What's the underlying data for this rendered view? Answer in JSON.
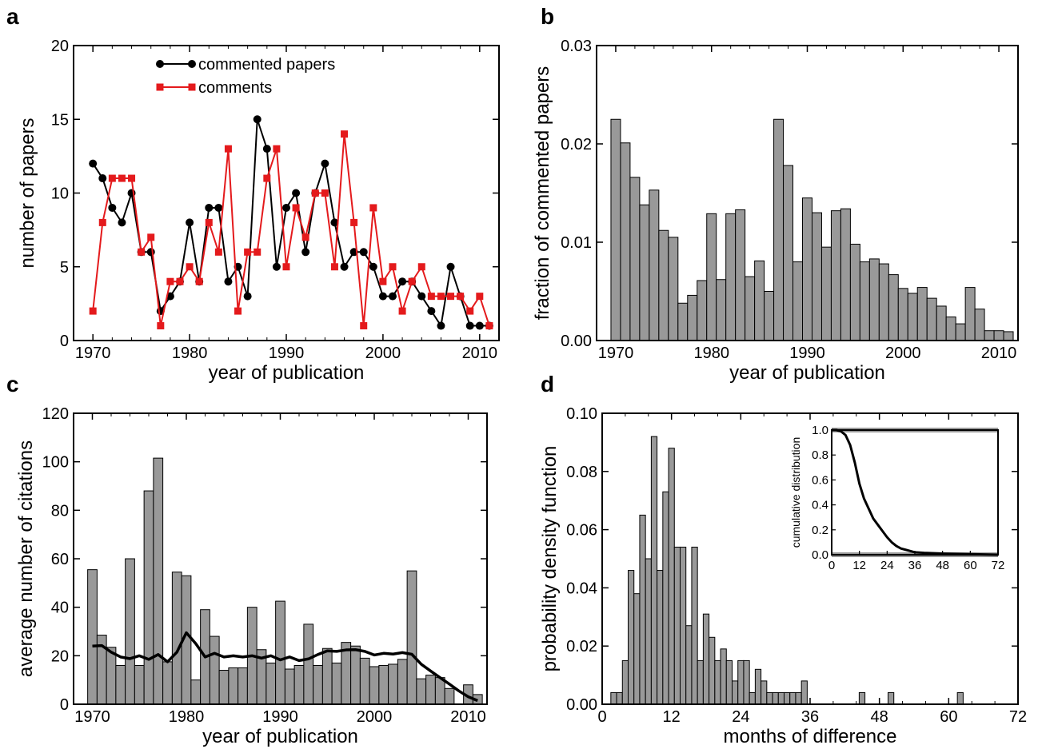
{
  "chart_data": [
    {
      "panel": "a",
      "type": "line",
      "xlabel": "year of publication",
      "ylabel": "number of papers",
      "xlim": [
        1968,
        2012
      ],
      "ylim": [
        0,
        20
      ],
      "xticks": [
        1970,
        1980,
        1990,
        2000,
        2010
      ],
      "yticks": [
        0,
        5,
        10,
        15,
        20
      ],
      "legend_position": "top-center",
      "x": [
        1970,
        1971,
        1972,
        1973,
        1974,
        1975,
        1976,
        1977,
        1978,
        1979,
        1980,
        1981,
        1982,
        1983,
        1984,
        1985,
        1986,
        1987,
        1988,
        1989,
        1990,
        1991,
        1992,
        1993,
        1994,
        1995,
        1996,
        1997,
        1998,
        1999,
        2000,
        2001,
        2002,
        2003,
        2004,
        2005,
        2006,
        2007,
        2008,
        2009,
        2010,
        2011
      ],
      "series": [
        {
          "name": "commented papers",
          "color": "#000000",
          "marker": "circle",
          "values": [
            12,
            11,
            9,
            8,
            10,
            6,
            6,
            2,
            3,
            4,
            8,
            4,
            9,
            9,
            4,
            5,
            3,
            15,
            13,
            5,
            9,
            10,
            6,
            10,
            12,
            8,
            5,
            6,
            6,
            5,
            3,
            3,
            4,
            4,
            3,
            2,
            1,
            5,
            3,
            1,
            1,
            1
          ]
        },
        {
          "name": "comments",
          "color": "#e41a1c",
          "marker": "square",
          "values": [
            2,
            8,
            11,
            11,
            11,
            6,
            7,
            1,
            4,
            4,
            5,
            4,
            8,
            6,
            13,
            2,
            6,
            6,
            11,
            13,
            5,
            9,
            7,
            10,
            10,
            5,
            14,
            8,
            1,
            9,
            4,
            5,
            2,
            4,
            5,
            3,
            3,
            3,
            3,
            2,
            3,
            1
          ]
        }
      ]
    },
    {
      "panel": "b",
      "type": "bar",
      "xlabel": "year of publication",
      "ylabel": "fraction of commented papers",
      "xlim": [
        1968,
        2012
      ],
      "ylim": [
        0,
        0.03
      ],
      "xticks": [
        1970,
        1980,
        1990,
        2000,
        2010
      ],
      "yticks": [
        "0.00",
        "0.01",
        "0.02",
        "0.03"
      ],
      "bar_color": "#999999",
      "categories": [
        1970,
        1971,
        1972,
        1973,
        1974,
        1975,
        1976,
        1977,
        1978,
        1979,
        1980,
        1981,
        1982,
        1983,
        1984,
        1985,
        1986,
        1987,
        1988,
        1989,
        1990,
        1991,
        1992,
        1993,
        1994,
        1995,
        1996,
        1997,
        1998,
        1999,
        2000,
        2001,
        2002,
        2003,
        2004,
        2005,
        2006,
        2007,
        2008,
        2009,
        2010,
        2011
      ],
      "values": [
        0.0225,
        0.0201,
        0.0166,
        0.0138,
        0.0153,
        0.0112,
        0.0105,
        0.0038,
        0.0046,
        0.0061,
        0.0129,
        0.0062,
        0.0129,
        0.0133,
        0.0065,
        0.0081,
        0.005,
        0.0225,
        0.0178,
        0.008,
        0.0145,
        0.013,
        0.0095,
        0.0132,
        0.0134,
        0.0098,
        0.008,
        0.0083,
        0.0078,
        0.0067,
        0.0053,
        0.0048,
        0.0054,
        0.0043,
        0.0035,
        0.0024,
        0.0017,
        0.0054,
        0.0032,
        0.001,
        0.001,
        0.0009
      ]
    },
    {
      "panel": "c",
      "type": "bar",
      "xlabel": "year of publication",
      "ylabel": "average number of citations",
      "xlim": [
        1968,
        2012
      ],
      "ylim": [
        0,
        120
      ],
      "xticks": [
        1970,
        1980,
        1990,
        2000,
        2010
      ],
      "yticks": [
        0,
        20,
        40,
        60,
        80,
        100,
        120
      ],
      "bar_color": "#999999",
      "line_color": "#000000",
      "categories": [
        1970,
        1971,
        1972,
        1973,
        1974,
        1975,
        1976,
        1977,
        1978,
        1979,
        1980,
        1981,
        1982,
        1983,
        1984,
        1985,
        1986,
        1987,
        1988,
        1989,
        1990,
        1991,
        1992,
        1993,
        1994,
        1995,
        1996,
        1997,
        1998,
        1999,
        2000,
        2001,
        2002,
        2003,
        2004,
        2005,
        2006,
        2007,
        2008,
        2009,
        2010,
        2011
      ],
      "values": [
        55.5,
        28.5,
        23.5,
        16,
        60,
        16,
        88,
        101.5,
        17.5,
        54.5,
        53,
        10,
        39,
        28,
        14,
        15,
        15,
        40,
        22.5,
        17,
        42.5,
        14.5,
        16,
        33,
        16,
        23,
        17,
        25.5,
        24,
        19,
        15.5,
        16,
        16.5,
        18.5,
        55,
        10.5,
        12,
        11,
        6.5,
        0,
        8,
        4
      ],
      "line_values": [
        24,
        24.2,
        21.5,
        19.5,
        18.8,
        20,
        18.5,
        20.5,
        17.5,
        21.5,
        29.5,
        25,
        19.5,
        21,
        19.5,
        20,
        19.5,
        20,
        19,
        20,
        18.3,
        19.5,
        18,
        18.7,
        20.5,
        22,
        21.8,
        22.4,
        22.5,
        21.8,
        20.3,
        21,
        20.7,
        21.3,
        20.6,
        16.5,
        13.7,
        11,
        8.3,
        5.5,
        3.1,
        1.5
      ]
    },
    {
      "panel": "d",
      "type": "bar",
      "xlabel": "months of difference",
      "ylabel": "probability density function",
      "xlim": [
        0,
        72
      ],
      "ylim": [
        0,
        0.1
      ],
      "xticks": [
        0,
        12,
        24,
        36,
        48,
        60,
        72
      ],
      "yticks": [
        "0.00",
        "0.02",
        "0.04",
        "0.06",
        "0.08",
        "0.10"
      ],
      "bar_color": "#999999",
      "categories": [
        2,
        3,
        4,
        5,
        6,
        7,
        8,
        9,
        10,
        11,
        12,
        13,
        14,
        15,
        16,
        17,
        18,
        19,
        20,
        21,
        22,
        23,
        24,
        25,
        26,
        27,
        28,
        29,
        30,
        31,
        32,
        33,
        34,
        35,
        45,
        50,
        62
      ],
      "values": [
        0.004,
        0.004,
        0.015,
        0.046,
        0.038,
        0.065,
        0.05,
        0.092,
        0.046,
        0.073,
        0.088,
        0.054,
        0.054,
        0.027,
        0.054,
        0.015,
        0.031,
        0.023,
        0.015,
        0.019,
        0.015,
        0.008,
        0.015,
        0.015,
        0.004,
        0.012,
        0.008,
        0.004,
        0.004,
        0.004,
        0.004,
        0.004,
        0.004,
        0.008,
        0.004,
        0.004,
        0.004
      ],
      "inset": {
        "type": "line",
        "ylabel": "cumulative distribution",
        "xlim": [
          0,
          72
        ],
        "ylim": [
          0,
          1
        ],
        "xticks": [
          0,
          12,
          24,
          36,
          48,
          60,
          72
        ],
        "yticks": [
          "0.0",
          "0.2",
          "0.4",
          "0.6",
          "0.8",
          "1.0"
        ],
        "x": [
          0,
          2,
          4,
          6,
          8,
          10,
          12,
          14,
          16,
          18,
          20,
          22,
          24,
          26,
          28,
          30,
          32,
          34,
          36,
          40,
          48,
          60,
          72
        ],
        "y": [
          1.0,
          1.0,
          0.99,
          0.96,
          0.88,
          0.74,
          0.57,
          0.45,
          0.37,
          0.29,
          0.24,
          0.19,
          0.14,
          0.1,
          0.07,
          0.05,
          0.04,
          0.03,
          0.02,
          0.015,
          0.01,
          0.005,
          0.0
        ]
      }
    }
  ]
}
